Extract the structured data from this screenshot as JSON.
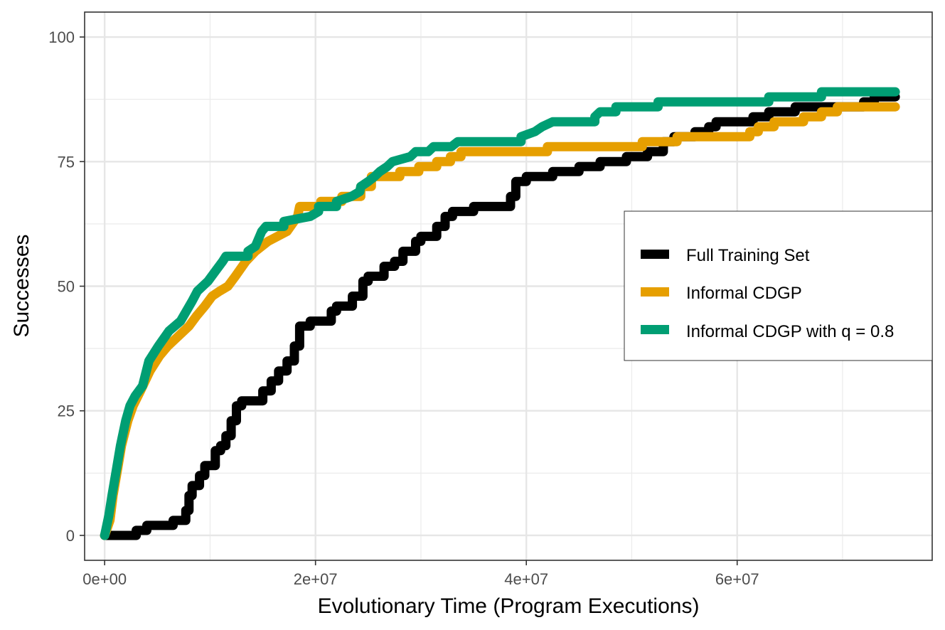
{
  "chart_data": {
    "type": "line",
    "title": "",
    "xlabel": "Evolutionary Time (Program Executions)",
    "ylabel": "Successes",
    "xlim": [
      -1900000,
      78500000
    ],
    "ylim": [
      -5,
      105
    ],
    "x_ticks": [
      0,
      20000000,
      40000000,
      60000000
    ],
    "x_tick_labels": [
      "0e+00",
      "2e+07",
      "4e+07",
      "6e+07"
    ],
    "y_ticks": [
      0,
      25,
      50,
      75,
      100
    ],
    "y_tick_labels": [
      "0",
      "25",
      "50",
      "75",
      "100"
    ],
    "grid": true,
    "legend_position": "right",
    "series": [
      {
        "name": "Full Training Set",
        "color": "#000000",
        "points": [
          [
            0,
            0
          ],
          [
            3000000,
            0
          ],
          [
            3000000,
            1
          ],
          [
            4000000,
            1
          ],
          [
            4000000,
            2
          ],
          [
            6500000,
            2
          ],
          [
            6500000,
            3
          ],
          [
            7700000,
            3
          ],
          [
            7700000,
            5
          ],
          [
            8000000,
            5
          ],
          [
            8000000,
            8
          ],
          [
            8300000,
            8
          ],
          [
            8300000,
            10
          ],
          [
            9000000,
            10
          ],
          [
            9000000,
            12
          ],
          [
            9500000,
            12
          ],
          [
            9500000,
            14
          ],
          [
            10500000,
            14
          ],
          [
            10500000,
            17
          ],
          [
            11000000,
            17
          ],
          [
            11000000,
            18
          ],
          [
            11500000,
            18
          ],
          [
            11500000,
            20
          ],
          [
            12000000,
            20
          ],
          [
            12000000,
            23
          ],
          [
            12500000,
            23
          ],
          [
            12500000,
            26
          ],
          [
            13000000,
            26
          ],
          [
            13000000,
            27
          ],
          [
            15000000,
            27
          ],
          [
            15000000,
            29
          ],
          [
            15800000,
            29
          ],
          [
            15800000,
            31
          ],
          [
            16500000,
            31
          ],
          [
            16500000,
            33
          ],
          [
            17300000,
            33
          ],
          [
            17300000,
            35
          ],
          [
            18000000,
            35
          ],
          [
            18000000,
            38
          ],
          [
            18500000,
            38
          ],
          [
            18500000,
            42
          ],
          [
            19500000,
            42
          ],
          [
            19500000,
            43
          ],
          [
            21500000,
            43
          ],
          [
            21500000,
            45
          ],
          [
            22000000,
            45
          ],
          [
            22000000,
            46
          ],
          [
            23500000,
            46
          ],
          [
            23500000,
            48
          ],
          [
            24500000,
            48
          ],
          [
            24500000,
            51
          ],
          [
            25000000,
            51
          ],
          [
            25000000,
            52
          ],
          [
            26500000,
            52
          ],
          [
            26500000,
            54
          ],
          [
            27500000,
            54
          ],
          [
            27500000,
            55
          ],
          [
            28300000,
            55
          ],
          [
            28300000,
            57
          ],
          [
            29500000,
            57
          ],
          [
            29500000,
            59
          ],
          [
            30000000,
            59
          ],
          [
            30000000,
            60
          ],
          [
            31500000,
            60
          ],
          [
            31500000,
            62
          ],
          [
            32300000,
            62
          ],
          [
            32300000,
            64
          ],
          [
            33000000,
            64
          ],
          [
            33000000,
            65
          ],
          [
            35000000,
            65
          ],
          [
            35000000,
            66
          ],
          [
            38500000,
            66
          ],
          [
            38500000,
            68
          ],
          [
            39000000,
            68
          ],
          [
            39000000,
            71
          ],
          [
            40000000,
            71
          ],
          [
            40000000,
            72
          ],
          [
            42500000,
            72
          ],
          [
            42500000,
            73
          ],
          [
            45000000,
            73
          ],
          [
            45000000,
            74
          ],
          [
            47000000,
            74
          ],
          [
            47000000,
            75
          ],
          [
            49500000,
            75
          ],
          [
            49500000,
            76
          ],
          [
            51500000,
            76
          ],
          [
            51500000,
            77
          ],
          [
            53000000,
            77
          ],
          [
            53000000,
            79
          ],
          [
            54000000,
            79
          ],
          [
            54000000,
            80
          ],
          [
            56000000,
            80
          ],
          [
            56000000,
            81
          ],
          [
            57300000,
            81
          ],
          [
            57300000,
            82
          ],
          [
            58000000,
            82
          ],
          [
            58000000,
            83
          ],
          [
            61500000,
            83
          ],
          [
            61500000,
            84
          ],
          [
            63000000,
            84
          ],
          [
            63000000,
            85
          ],
          [
            65500000,
            85
          ],
          [
            65500000,
            86
          ],
          [
            72000000,
            86
          ],
          [
            72000000,
            87
          ],
          [
            73000000,
            87
          ],
          [
            73000000,
            88
          ],
          [
            75000000,
            88
          ]
        ]
      },
      {
        "name": "Informal CDGP",
        "color": "#E69F00",
        "points": [
          [
            0,
            0
          ],
          [
            500000,
            3
          ],
          [
            800000,
            8
          ],
          [
            1200000,
            13
          ],
          [
            1600000,
            18
          ],
          [
            2200000,
            23
          ],
          [
            2700000,
            26
          ],
          [
            3400000,
            29
          ],
          [
            4300000,
            33
          ],
          [
            5200000,
            36
          ],
          [
            6000000,
            38
          ],
          [
            7000000,
            40
          ],
          [
            8000000,
            42
          ],
          [
            8700000,
            44
          ],
          [
            9500000,
            46
          ],
          [
            10200000,
            48
          ],
          [
            10900000,
            49
          ],
          [
            11700000,
            50
          ],
          [
            12400000,
            52
          ],
          [
            13400000,
            55
          ],
          [
            14300000,
            57
          ],
          [
            15500000,
            59
          ],
          [
            17300000,
            61
          ],
          [
            18300000,
            64
          ],
          [
            18500000,
            66
          ],
          [
            20500000,
            66
          ],
          [
            20500000,
            67
          ],
          [
            22500000,
            67
          ],
          [
            22500000,
            68
          ],
          [
            24300000,
            68
          ],
          [
            24300000,
            70
          ],
          [
            25300000,
            70
          ],
          [
            25300000,
            72
          ],
          [
            28000000,
            72
          ],
          [
            28000000,
            73
          ],
          [
            29800000,
            73
          ],
          [
            29800000,
            74
          ],
          [
            31500000,
            74
          ],
          [
            31500000,
            75
          ],
          [
            32800000,
            75
          ],
          [
            32800000,
            76
          ],
          [
            33800000,
            76
          ],
          [
            33800000,
            77
          ],
          [
            42000000,
            77
          ],
          [
            42000000,
            78
          ],
          [
            51000000,
            78
          ],
          [
            51000000,
            79
          ],
          [
            54300000,
            79
          ],
          [
            54300000,
            80
          ],
          [
            61200000,
            80
          ],
          [
            61200000,
            81
          ],
          [
            62000000,
            81
          ],
          [
            62000000,
            82
          ],
          [
            63500000,
            82
          ],
          [
            63500000,
            83
          ],
          [
            66300000,
            83
          ],
          [
            66300000,
            84
          ],
          [
            68000000,
            84
          ],
          [
            68000000,
            85
          ],
          [
            69500000,
            85
          ],
          [
            69500000,
            86
          ],
          [
            75000000,
            86
          ]
        ]
      },
      {
        "name": "Informal CDGP with q = 0.8",
        "color": "#009E73",
        "points": [
          [
            0,
            0
          ],
          [
            400000,
            4
          ],
          [
            700000,
            8
          ],
          [
            1100000,
            13
          ],
          [
            1500000,
            18
          ],
          [
            2000000,
            23
          ],
          [
            2400000,
            26
          ],
          [
            2900000,
            28
          ],
          [
            3600000,
            30
          ],
          [
            4200000,
            35
          ],
          [
            5100000,
            38
          ],
          [
            6100000,
            41
          ],
          [
            7200000,
            43
          ],
          [
            8300000,
            47
          ],
          [
            8800000,
            49
          ],
          [
            9800000,
            51
          ],
          [
            10500000,
            53
          ],
          [
            11200000,
            55
          ],
          [
            11500000,
            56
          ],
          [
            13600000,
            56
          ],
          [
            13600000,
            57
          ],
          [
            14300000,
            58
          ],
          [
            14900000,
            61
          ],
          [
            15300000,
            62
          ],
          [
            17000000,
            62
          ],
          [
            17000000,
            63
          ],
          [
            19500000,
            64
          ],
          [
            20300000,
            65
          ],
          [
            20300000,
            66
          ],
          [
            22000000,
            66
          ],
          [
            22000000,
            67
          ],
          [
            23400000,
            68
          ],
          [
            24200000,
            69
          ],
          [
            24300000,
            70
          ],
          [
            25000000,
            71
          ],
          [
            25600000,
            72
          ],
          [
            26100000,
            73
          ],
          [
            26800000,
            74
          ],
          [
            27300000,
            75
          ],
          [
            29000000,
            76
          ],
          [
            29500000,
            77
          ],
          [
            30700000,
            77
          ],
          [
            31200000,
            78
          ],
          [
            32900000,
            78
          ],
          [
            33500000,
            79
          ],
          [
            39500000,
            79
          ],
          [
            39500000,
            80
          ],
          [
            40800000,
            81
          ],
          [
            41500000,
            82
          ],
          [
            42500000,
            83
          ],
          [
            46500000,
            83
          ],
          [
            46500000,
            84
          ],
          [
            47000000,
            85
          ],
          [
            48500000,
            85
          ],
          [
            48500000,
            86
          ],
          [
            52500000,
            86
          ],
          [
            52500000,
            87
          ],
          [
            63000000,
            87
          ],
          [
            63000000,
            88
          ],
          [
            68000000,
            88
          ],
          [
            68000000,
            89
          ],
          [
            75000000,
            89
          ]
        ]
      }
    ]
  }
}
